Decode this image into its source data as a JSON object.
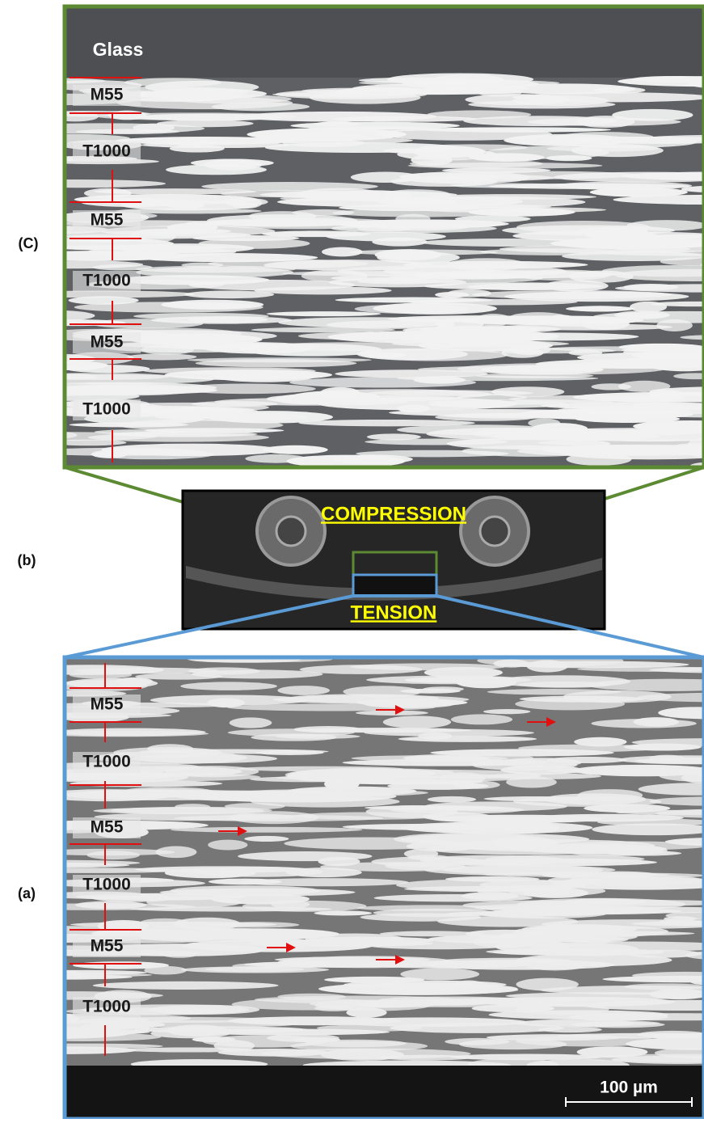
{
  "panel_c": {
    "label": "(C)",
    "glass": "Glass",
    "layers": [
      "M55",
      "T1000",
      "M55",
      "T1000",
      "M55",
      "T1000"
    ]
  },
  "panel_b": {
    "label": "(b)",
    "top": "COMPRESSION",
    "bottom": "TENSION"
  },
  "panel_a": {
    "label": "(a)",
    "layers": [
      "M55",
      "T1000",
      "M55",
      "T1000",
      "M55",
      "T1000"
    ],
    "scale_bar": "100 µm"
  }
}
